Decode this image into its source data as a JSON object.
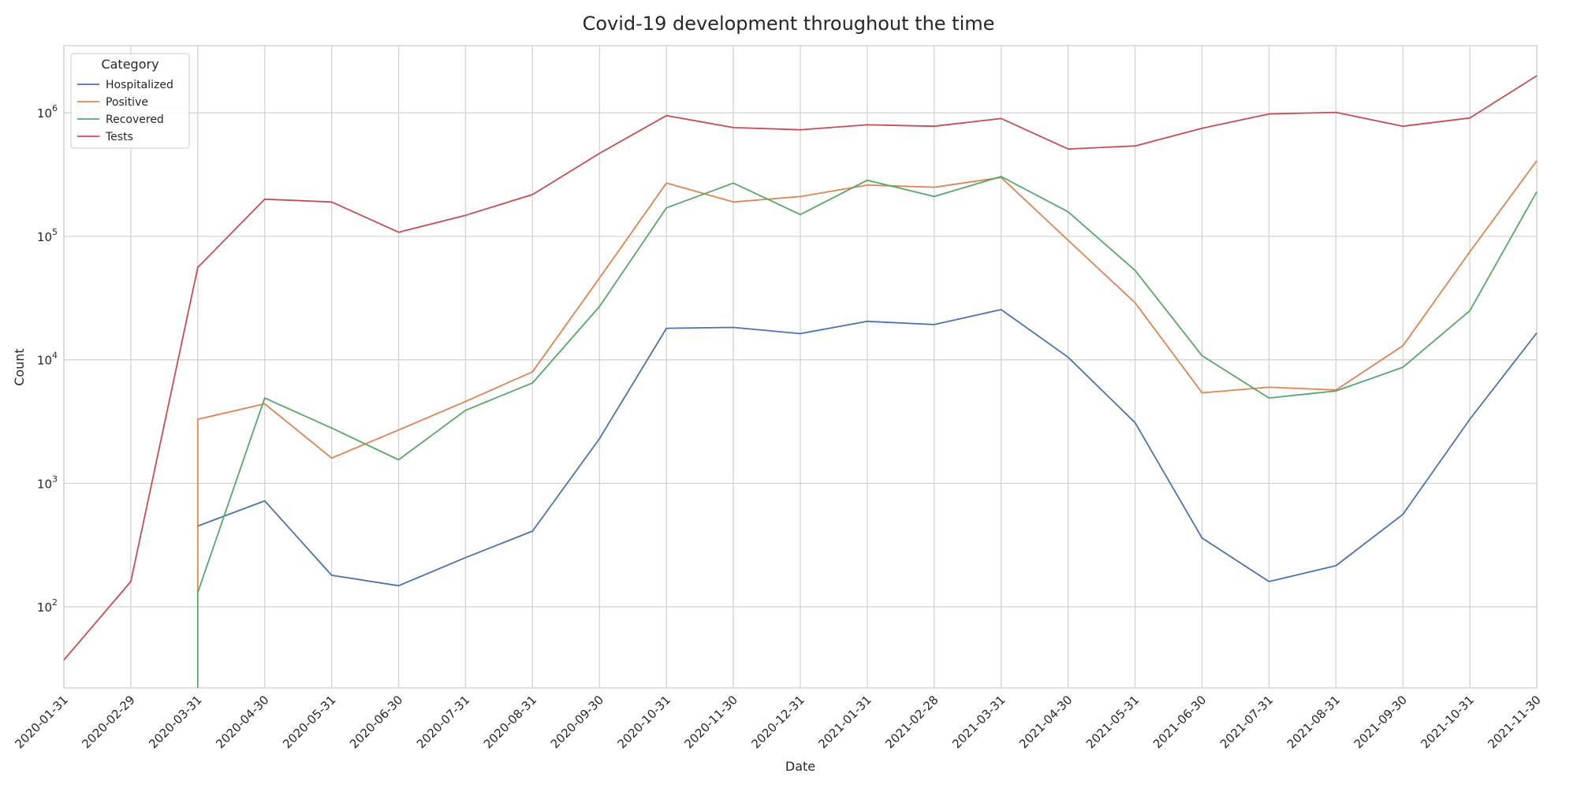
{
  "chart_data": {
    "type": "line",
    "title": "Covid-19 development throughout the time",
    "xlabel": "Date",
    "ylabel": "Count",
    "yscale": "log",
    "ylim": [
      22,
      3500000
    ],
    "grid": true,
    "legend": {
      "title": "Category",
      "placement": "top-left"
    },
    "x": [
      "2020-01-31",
      "2020-02-29",
      "2020-03-31",
      "2020-04-30",
      "2020-05-31",
      "2020-06-30",
      "2020-07-31",
      "2020-08-31",
      "2020-09-30",
      "2020-10-31",
      "2020-11-30",
      "2020-12-31",
      "2021-01-31",
      "2021-02-28",
      "2021-03-31",
      "2021-04-30",
      "2021-05-31",
      "2021-06-30",
      "2021-07-31",
      "2021-08-31",
      "2021-09-30",
      "2021-10-31",
      "2021-11-30"
    ],
    "yticks": [
      {
        "value": 100,
        "base": "10",
        "exp": "2"
      },
      {
        "value": 1000,
        "base": "10",
        "exp": "3"
      },
      {
        "value": 10000,
        "base": "10",
        "exp": "4"
      },
      {
        "value": 100000,
        "base": "10",
        "exp": "5"
      },
      {
        "value": 1000000,
        "base": "10",
        "exp": "6"
      }
    ],
    "series": [
      {
        "name": "Hospitalized",
        "color": "#4c72b0",
        "values": [
          null,
          null,
          450,
          720,
          180,
          148,
          250,
          410,
          2300,
          18000,
          18300,
          16300,
          20500,
          19300,
          25500,
          10500,
          3100,
          360,
          160,
          215,
          560,
          3300,
          16500
        ]
      },
      {
        "name": "Positive",
        "color": "#dd8452",
        "values": [
          null,
          null,
          3300,
          4400,
          1600,
          2700,
          4600,
          8000,
          46000,
          270000,
          190000,
          210000,
          260000,
          250000,
          300000,
          93000,
          29000,
          5400,
          6000,
          5700,
          13000,
          75000,
          410000
        ]
      },
      {
        "name": "Recovered",
        "color": "#55a868",
        "values": [
          null,
          null,
          130,
          4900,
          2800,
          1550,
          3900,
          6500,
          27000,
          170000,
          270000,
          150000,
          285000,
          210000,
          305000,
          158000,
          53000,
          10800,
          4900,
          5600,
          8700,
          25000,
          230000
        ]
      },
      {
        "name": "Tests",
        "color": "#c44e52",
        "values": [
          37,
          160,
          56000,
          200000,
          190000,
          108000,
          148000,
          218000,
          470000,
          950000,
          760000,
          730000,
          800000,
          780000,
          900000,
          510000,
          540000,
          750000,
          980000,
          1010000,
          780000,
          910000,
          2000000
        ]
      }
    ],
    "drops": [
      {
        "series": "Positive",
        "index": 2,
        "to": 130
      },
      {
        "series": "Recovered",
        "index": 2,
        "to": 22
      }
    ]
  }
}
